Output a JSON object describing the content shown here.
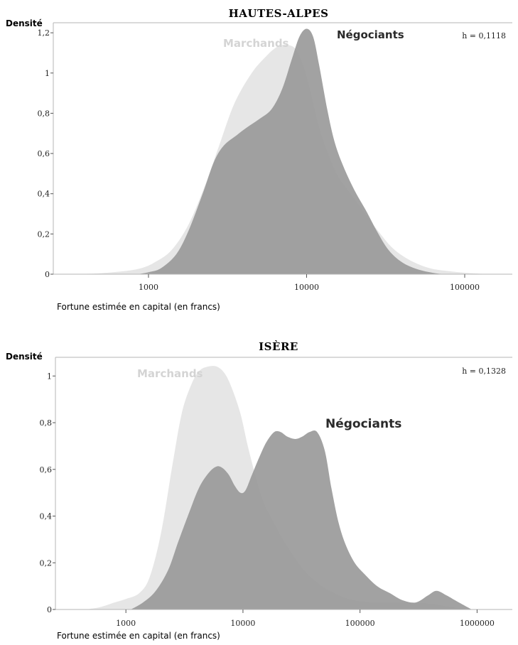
{
  "chart_data": [
    {
      "type": "area",
      "title": "Hautes-Alpes",
      "ylabel": "Densité",
      "xlabel": "Fortune estimée en capital (en francs)",
      "annotation": "h = 0,1118",
      "x_scale": "log",
      "xlim": [
        250,
        200000
      ],
      "ylim": [
        0,
        1.25
      ],
      "yticks": [
        0,
        0.2,
        0.4,
        0.6,
        0.8,
        1,
        1.2
      ],
      "ytick_labels": [
        "0",
        "0,2",
        "0,4",
        "0,6",
        "0,8",
        "1",
        "1,2"
      ],
      "xticks": [
        1000,
        10000,
        100000
      ],
      "xtick_labels": [
        "1000",
        "10000",
        "100000"
      ],
      "series": [
        {
          "name": "Marchands",
          "color": "#e6e6e6",
          "x": [
            350,
            500,
            700,
            900,
            1100,
            1400,
            1800,
            2300,
            2800,
            3500,
            4500,
            5500,
            6500,
            7500,
            8500,
            9500,
            10500,
            12000,
            14000,
            16000,
            19000,
            23000,
            28000,
            35000,
            45000,
            60000,
            80000,
            110000,
            150000
          ],
          "y": [
            0,
            0.005,
            0.015,
            0.03,
            0.06,
            0.12,
            0.25,
            0.45,
            0.64,
            0.85,
            1.0,
            1.08,
            1.13,
            1.14,
            1.12,
            1.04,
            0.92,
            0.73,
            0.58,
            0.48,
            0.4,
            0.31,
            0.22,
            0.13,
            0.07,
            0.03,
            0.015,
            0.005,
            0
          ]
        },
        {
          "name": "Négociants",
          "color": "#9a9a9a",
          "x": [
            850,
            1000,
            1200,
            1500,
            1800,
            2200,
            2600,
            3000,
            3600,
            4200,
            5000,
            6000,
            7000,
            8000,
            9000,
            10000,
            11000,
            12000,
            13500,
            15000,
            17000,
            20000,
            24000,
            28000,
            33000,
            40000,
            50000,
            65000,
            80000
          ],
          "y": [
            0,
            0.01,
            0.03,
            0.1,
            0.22,
            0.4,
            0.56,
            0.64,
            0.69,
            0.73,
            0.77,
            0.82,
            0.92,
            1.06,
            1.18,
            1.22,
            1.18,
            1.04,
            0.82,
            0.66,
            0.54,
            0.42,
            0.31,
            0.21,
            0.12,
            0.06,
            0.025,
            0.005,
            0
          ]
        }
      ]
    },
    {
      "type": "area",
      "title": "Isère",
      "ylabel": "Densité",
      "xlabel": "Fortune estimée en capital (en francs)",
      "annotation": "h = 0,1328",
      "x_scale": "log",
      "xlim": [
        250,
        2000000
      ],
      "ylim": [
        0,
        1.08
      ],
      "yticks": [
        0,
        0.2,
        0.4,
        0.6,
        0.8,
        1
      ],
      "ytick_labels": [
        "0",
        "0,2",
        "0,4",
        "0,6",
        "0,8",
        "1"
      ],
      "xticks": [
        1000,
        10000,
        100000,
        1000000
      ],
      "xtick_labels": [
        "1000",
        "10000",
        "100000",
        "1000000"
      ],
      "series": [
        {
          "name": "Marchands",
          "color": "#e6e6e6",
          "x": [
            450,
            600,
            800,
            1000,
            1300,
            1600,
            2000,
            2500,
            3000,
            3600,
            4200,
            5000,
            6000,
            7000,
            8000,
            9500,
            11000,
            13000,
            15000,
            18000,
            22000,
            27000,
            33000,
            42000,
            55000,
            75000,
            100000,
            150000,
            250000,
            400000,
            600000,
            900000
          ],
          "y": [
            0,
            0.01,
            0.03,
            0.045,
            0.07,
            0.14,
            0.33,
            0.62,
            0.84,
            0.96,
            1.02,
            1.04,
            1.04,
            1.01,
            0.95,
            0.84,
            0.7,
            0.56,
            0.46,
            0.38,
            0.3,
            0.23,
            0.17,
            0.12,
            0.08,
            0.05,
            0.035,
            0.03,
            0.03,
            0.025,
            0.01,
            0
          ]
        },
        {
          "name": "Négociants",
          "color": "#9a9a9a",
          "x": [
            1100,
            1400,
            1800,
            2300,
            2800,
            3500,
            4200,
            5000,
            5800,
            6500,
            7500,
            8500,
            9500,
            10500,
            12000,
            14000,
            16000,
            18500,
            21000,
            24000,
            28000,
            32000,
            37000,
            43000,
            50000,
            57000,
            65000,
            75000,
            90000,
            110000,
            140000,
            180000,
            230000,
            300000,
            380000,
            450000,
            550000,
            700000,
            900000
          ],
          "y": [
            0,
            0.03,
            0.08,
            0.17,
            0.29,
            0.42,
            0.52,
            0.58,
            0.61,
            0.61,
            0.58,
            0.53,
            0.5,
            0.51,
            0.58,
            0.66,
            0.72,
            0.76,
            0.76,
            0.74,
            0.73,
            0.74,
            0.76,
            0.76,
            0.68,
            0.52,
            0.38,
            0.28,
            0.2,
            0.15,
            0.1,
            0.07,
            0.04,
            0.03,
            0.06,
            0.08,
            0.06,
            0.03,
            0
          ]
        }
      ]
    }
  ]
}
